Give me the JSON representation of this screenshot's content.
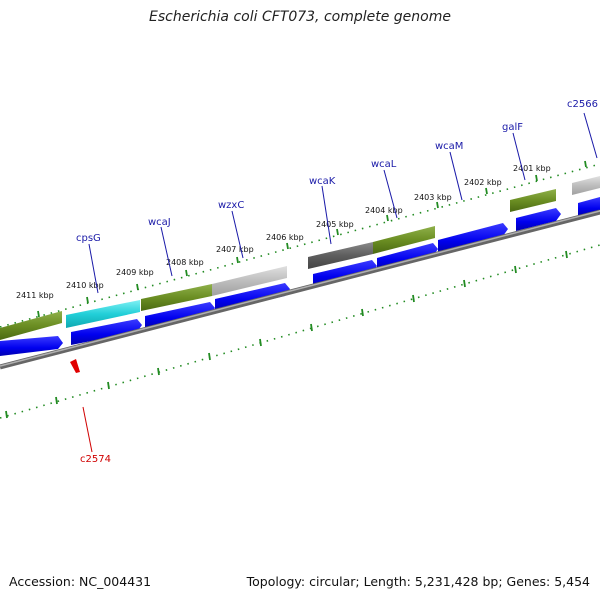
{
  "title": "Escherichia coli CFT073, complete genome",
  "footer": {
    "accession": "Accession: NC_004431",
    "summary": "Topology: circular; Length: 5,231,428 bp; Genes: 5,454"
  },
  "colors": {
    "cds_arrow": "#0000ee",
    "feature_green": "#6b8e23",
    "feature_cyan": "#22cfd8",
    "feature_gray": "#bdbdbd",
    "feature_darkgray": "#666666",
    "backbone": "#888888",
    "tick": "#228b22",
    "label_blue": "#1a1aa8",
    "label_red": "#d00000"
  },
  "kbp_labels": [
    "2411 kbp",
    "2410 kbp",
    "2409 kbp",
    "2408 kbp",
    "2407 kbp",
    "2406 kbp",
    "2405 kbp",
    "2404 kbp",
    "2403 kbp",
    "2402 kbp",
    "2401 kbp"
  ],
  "genes_top": [
    "cpsG",
    "wcaJ",
    "wzxC",
    "wcaK",
    "wcaL",
    "wcaM",
    "galF",
    "c2566"
  ],
  "genes_bottom": [
    "c2574"
  ]
}
